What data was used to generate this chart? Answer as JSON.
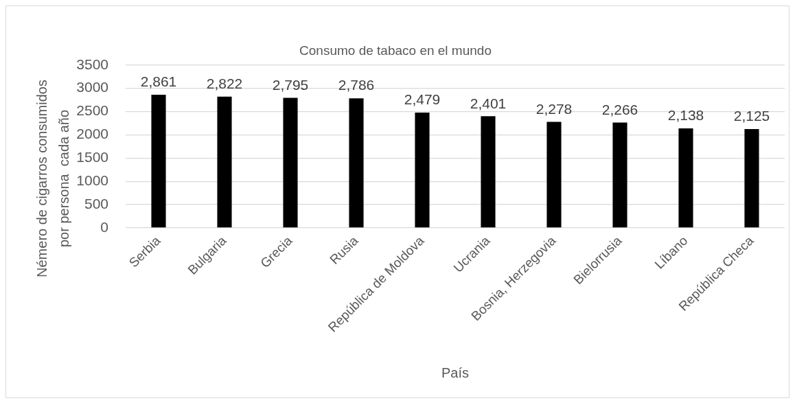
{
  "chart_data": {
    "type": "bar",
    "title": "Consumo de tabaco en el mundo",
    "xlabel": "País",
    "ylabel": "Némero de cigarros consumidos por persona  cada año",
    "categories": [
      "Serbia",
      "Bulgaria",
      "Grecia",
      "Rusia",
      "República de Moldova",
      "Ucrania",
      "Bosnia, Herzegovia",
      "Bielorrusia",
      "Líbano",
      "República Checa"
    ],
    "values": [
      2861,
      2822,
      2795,
      2786,
      2479,
      2401,
      2278,
      2266,
      2138,
      2125
    ],
    "value_labels": [
      "2,861",
      "2,822",
      "2,795",
      "2,786",
      "2,479",
      "2,401",
      "2,278",
      "2,266",
      "2,138",
      "2,125"
    ],
    "color": "#000000",
    "ylim": [
      0,
      3500
    ],
    "yticks": [
      0,
      500,
      1000,
      1500,
      2000,
      2500,
      3000,
      3500
    ],
    "grid": "y"
  }
}
